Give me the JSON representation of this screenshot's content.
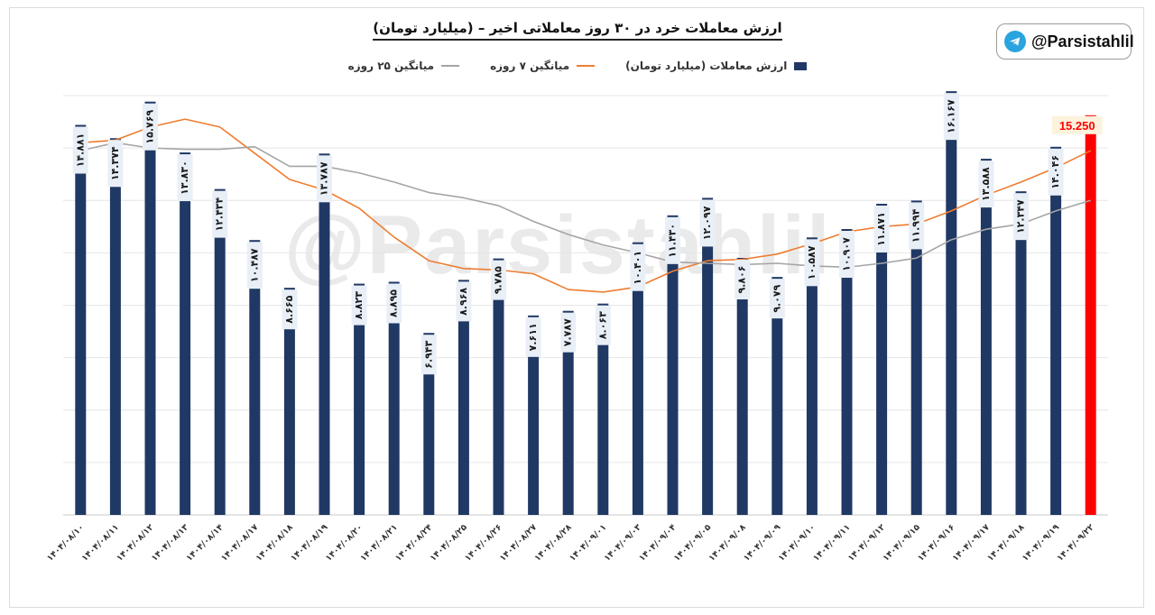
{
  "chart_data": {
    "type": "bar",
    "title": "ارزش معاملات خرد در ۳۰ روز معاملاتی اخیر – (میلیارد تومان)",
    "xlabel": "",
    "ylabel": "",
    "ylim": [
      0,
      16
    ],
    "grid": true,
    "legend_position": "top-center",
    "categories": [
      "۱۴۰۴/۰۸/۱۰",
      "۱۴۰۴/۰۸/۱۱",
      "۱۴۰۴/۰۸/۱۲",
      "۱۴۰۴/۰۸/۱۳",
      "۱۴۰۴/۰۸/۱۴",
      "۱۴۰۴/۰۸/۱۷",
      "۱۴۰۴/۰۸/۱۸",
      "۱۴۰۴/۰۸/۱۹",
      "۱۴۰۴/۰۸/۲۰",
      "۱۴۰۴/۰۸/۲۱",
      "۱۴۰۴/۰۸/۲۴",
      "۱۴۰۴/۰۸/۲۵",
      "۱۴۰۴/۰۸/۲۶",
      "۱۴۰۴/۰۸/۲۷",
      "۱۴۰۴/۰۸/۲۸",
      "۱۴۰۴/۰۹/۰۱",
      "۱۴۰۴/۰۹/۰۳",
      "۱۴۰۴/۰۹/۰۴",
      "۱۴۰۴/۰۹/۰۵",
      "۱۴۰۴/۰۹/۰۸",
      "۱۴۰۴/۰۹/۰۹",
      "۱۴۰۴/۰۹/۱۰",
      "۱۴۰۴/۰۹/۱۱",
      "۱۴۰۴/۰۹/۱۲",
      "۱۴۰۴/۰۹/۱۵",
      "۱۴۰۴/۰۹/۱۶",
      "۱۴۰۴/۰۹/۱۷",
      "۱۴۰۴/۰۹/۱۸",
      "۱۴۰۴/۰۹/۱۹",
      "۱۴۰۴/۰۹/۲۲"
    ],
    "series": [
      {
        "name": "ارزش معاملات (میلیارد تومان)",
        "kind": "bar",
        "color": "#203864",
        "highlight_color": "#ff0000",
        "values": [
          14.881,
          14.374,
          15.769,
          13.83,
          12.434,
          10.487,
          8.665,
          13.787,
          8.823,
          8.895,
          6.943,
          8.968,
          9.785,
          7.611,
          7.787,
          8.063,
          10.401,
          11.43,
          12.097,
          9.806,
          9.079,
          10.587,
          10.907,
          11.871,
          11.994,
          16.167,
          13.588,
          12.347,
          14.046,
          15.25
        ],
        "data_labels": [
          "۱۴.۸۸۱",
          "۱۴.۳۷۴",
          "۱۵.۷۶۹",
          "۱۳.۸۳۰",
          "۱۲.۴۳۴",
          "۱۰.۴۸۷",
          "۸.۶۶۵",
          "۱۳.۷۸۷",
          "۸.۸۲۳",
          "۸.۸۹۵",
          "۶.۹۴۳",
          "۸.۹۶۸",
          "۹.۷۸۵",
          "۷.۶۱۱",
          "۷.۷۸۷",
          "۸.۰۶۳",
          "۱۰.۴۰۱",
          "۱۱.۴۳۰",
          "۱۲.۰۹۷",
          "۹.۸۰۶",
          "۹.۰۷۹",
          "۱۰.۵۸۷",
          "۱۰.۹۰۷",
          "۱۱.۸۷۱",
          "۱۱.۹۹۴",
          "۱۶.۱۶۷",
          "۱۳.۵۸۸",
          "۱۲.۳۴۷",
          "۱۴.۰۴۶",
          "15.250"
        ]
      },
      {
        "name": "میانگین ۷ روزه",
        "kind": "line",
        "color": "#ED7D31",
        "values": [
          14.2,
          14.3,
          14.8,
          15.1,
          14.8,
          13.8,
          12.8,
          12.4,
          11.7,
          10.6,
          9.7,
          9.4,
          9.35,
          9.2,
          8.6,
          8.5,
          8.7,
          9.3,
          9.7,
          9.75,
          9.95,
          10.35,
          10.8,
          11.0,
          11.1,
          11.6,
          12.2,
          12.7,
          13.25,
          13.9
        ]
      },
      {
        "name": "میانگین ۲۵ روزه",
        "kind": "line",
        "color": "#A5A5A5",
        "values": [
          13.9,
          14.2,
          14.0,
          13.95,
          13.95,
          14.05,
          13.3,
          13.3,
          13.05,
          12.7,
          12.3,
          12.1,
          11.8,
          11.2,
          10.7,
          10.3,
          10.0,
          9.65,
          9.6,
          9.55,
          9.6,
          9.5,
          9.45,
          9.6,
          9.8,
          10.5,
          10.9,
          11.1,
          11.6,
          12.0
        ]
      }
    ]
  },
  "watermark": "@Parsistahlil",
  "social": {
    "handle": "@Parsistahlil",
    "icon": "telegram-icon"
  },
  "colors": {
    "bar": "#203864",
    "highlight": "#ff0000",
    "ma7": "#ED7D31",
    "ma25": "#A5A5A5"
  }
}
